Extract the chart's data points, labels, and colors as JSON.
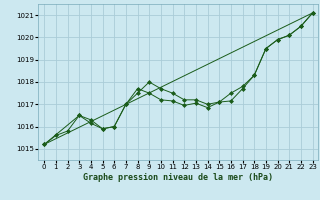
{
  "background_color": "#cce8f0",
  "grid_color": "#aaccd8",
  "line_color": "#1a5c1a",
  "xlabel": "Graphe pression niveau de la mer (hPa)",
  "xlim": [
    -0.5,
    23.5
  ],
  "ylim": [
    1014.5,
    1021.5
  ],
  "yticks": [
    1015,
    1016,
    1017,
    1018,
    1019,
    1020,
    1021
  ],
  "xticks": [
    0,
    1,
    2,
    3,
    4,
    5,
    6,
    7,
    8,
    9,
    10,
    11,
    12,
    13,
    14,
    15,
    16,
    17,
    18,
    19,
    20,
    21,
    22,
    23
  ],
  "line1_x": [
    0,
    1,
    2,
    3,
    4,
    5,
    6,
    7,
    8,
    9,
    10,
    11,
    12,
    13,
    14,
    15,
    16,
    17,
    18,
    19,
    20,
    21,
    22,
    23
  ],
  "line1_y": [
    1015.2,
    1015.6,
    1015.8,
    1016.5,
    1016.3,
    1015.9,
    1016.0,
    1017.0,
    1017.5,
    1018.0,
    1017.7,
    1017.5,
    1017.2,
    1017.2,
    1017.0,
    1017.1,
    1017.5,
    1017.8,
    1018.3,
    1019.5,
    1019.9,
    1020.1,
    1020.5,
    1021.1
  ],
  "line2_x": [
    0,
    23
  ],
  "line2_y": [
    1015.2,
    1021.1
  ],
  "line3_x": [
    0,
    3,
    4,
    5,
    6,
    7,
    8,
    9,
    10,
    11,
    12,
    13,
    14,
    15,
    16,
    17,
    18,
    19,
    20,
    21,
    22,
    23
  ],
  "line3_y": [
    1015.2,
    1016.5,
    1016.15,
    1015.9,
    1016.0,
    1017.0,
    1017.7,
    1017.5,
    1017.2,
    1017.15,
    1016.95,
    1017.05,
    1016.85,
    1017.1,
    1017.15,
    1017.7,
    1018.3,
    1019.5,
    1019.9,
    1020.1,
    1020.5,
    1021.1
  ],
  "tick_fontsize": 5,
  "xlabel_fontsize": 6
}
